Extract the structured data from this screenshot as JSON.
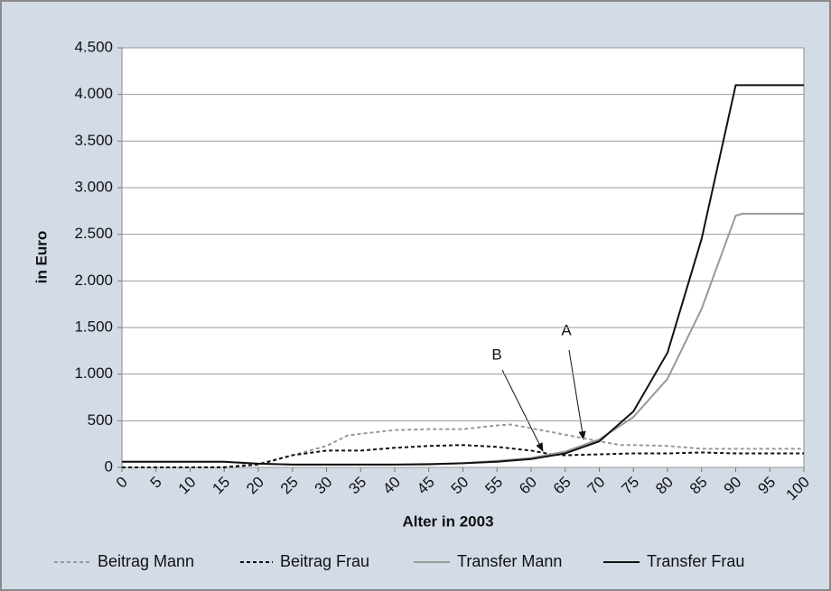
{
  "chart_data": {
    "type": "line",
    "xlabel": "Alter in 2003",
    "ylabel": "in Euro",
    "xlim": [
      0,
      100
    ],
    "xticks": [
      0,
      5,
      10,
      15,
      20,
      25,
      30,
      35,
      40,
      45,
      50,
      55,
      60,
      65,
      70,
      75,
      80,
      85,
      90,
      95,
      100
    ],
    "ylim": [
      0,
      4500
    ],
    "yticks": [
      {
        "value": 0,
        "label": "0"
      },
      {
        "value": 500,
        "label": "500"
      },
      {
        "value": 1000,
        "label": "1.000"
      },
      {
        "value": 1500,
        "label": "1.500"
      },
      {
        "value": 2000,
        "label": "2.000"
      },
      {
        "value": 2500,
        "label": "2.500"
      },
      {
        "value": 3000,
        "label": "3.000"
      },
      {
        "value": 3500,
        "label": "3.500"
      },
      {
        "value": 4000,
        "label": "4.000"
      },
      {
        "value": 4500,
        "label": "4.500"
      }
    ],
    "grid": true,
    "legend": "bottom",
    "series": [
      {
        "name": "Beitrag Mann",
        "color": "#999999",
        "dashed": true,
        "x": [
          0,
          5,
          10,
          15,
          20,
          25,
          30,
          33,
          35,
          40,
          45,
          50,
          55,
          57,
          60,
          65,
          70,
          73,
          75,
          80,
          85,
          90,
          95,
          100
        ],
        "values": [
          0,
          0,
          0,
          5,
          40,
          130,
          230,
          340,
          360,
          400,
          410,
          410,
          450,
          460,
          420,
          350,
          280,
          240,
          240,
          230,
          200,
          200,
          200,
          200
        ]
      },
      {
        "name": "Beitrag Frau",
        "color": "#111111",
        "dashed": true,
        "x": [
          0,
          5,
          10,
          15,
          20,
          25,
          30,
          35,
          40,
          45,
          50,
          55,
          60,
          63,
          65,
          70,
          75,
          80,
          85,
          90,
          95,
          100
        ],
        "values": [
          0,
          0,
          0,
          0,
          30,
          130,
          180,
          180,
          210,
          230,
          240,
          220,
          180,
          140,
          130,
          140,
          150,
          150,
          160,
          150,
          150,
          150
        ]
      },
      {
        "name": "Transfer Mann",
        "color": "#999999",
        "dashed": false,
        "x": [
          0,
          5,
          10,
          15,
          20,
          25,
          30,
          35,
          40,
          45,
          50,
          55,
          60,
          65,
          70,
          75,
          80,
          85,
          90,
          91,
          95,
          100
        ],
        "values": [
          60,
          60,
          60,
          60,
          40,
          30,
          30,
          30,
          30,
          30,
          45,
          70,
          100,
          170,
          300,
          540,
          950,
          1700,
          2700,
          2720,
          2720,
          2720
        ]
      },
      {
        "name": "Transfer Frau",
        "color": "#111111",
        "dashed": false,
        "x": [
          0,
          5,
          10,
          15,
          20,
          25,
          30,
          35,
          40,
          45,
          50,
          55,
          60,
          65,
          70,
          75,
          80,
          85,
          90,
          95,
          100
        ],
        "values": [
          60,
          60,
          60,
          60,
          40,
          30,
          30,
          30,
          30,
          35,
          45,
          60,
          90,
          150,
          280,
          600,
          1230,
          2450,
          4100,
          4100,
          4100
        ]
      }
    ],
    "annotations": [
      "A",
      "B"
    ]
  }
}
